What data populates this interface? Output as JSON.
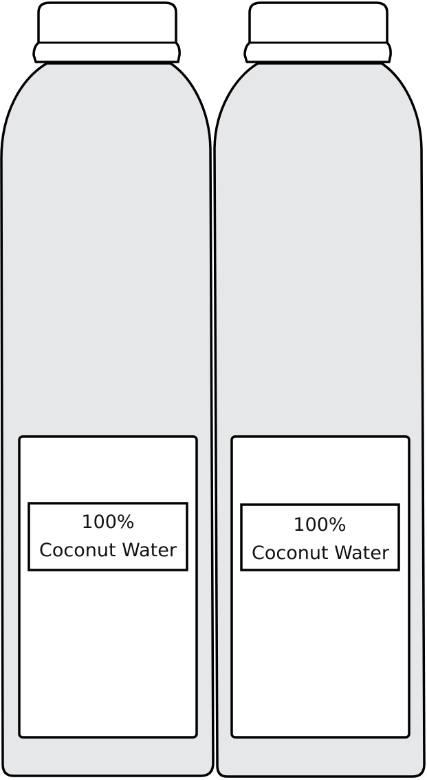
{
  "bottles": [
    {
      "label": {
        "line1": "100%",
        "line2": "Coconut Water"
      }
    },
    {
      "label": {
        "line1": "100%",
        "line2": "Coconut Water"
      }
    }
  ],
  "colors": {
    "bottle_fill": "#e6e7e8",
    "outline": "#000000",
    "label_fill": "#ffffff",
    "cap_fill": "#ffffff"
  }
}
